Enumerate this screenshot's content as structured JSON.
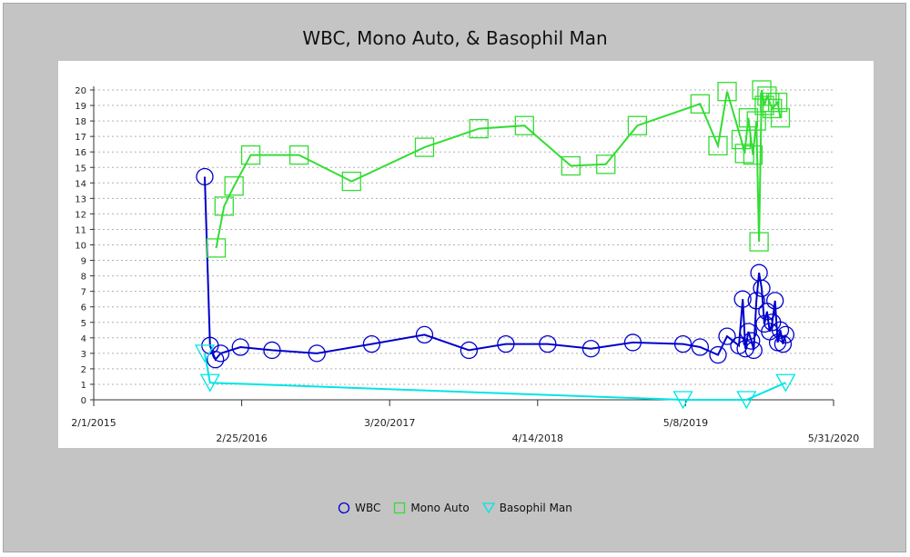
{
  "chart_data": {
    "type": "line",
    "title": "WBC, Mono Auto, & Basophil Man",
    "xlabel": "",
    "ylabel": "",
    "x_ticks": [
      "2/1/2015",
      "2/25/2016",
      "3/20/2017",
      "4/14/2018",
      "5/8/2019",
      "5/31/2020"
    ],
    "y_ticks": [
      "0",
      "1",
      "2",
      "3",
      "4",
      "5",
      "6",
      "7",
      "8",
      "9",
      "10",
      "11",
      "12",
      "13",
      "14",
      "15",
      "16",
      "17",
      "18",
      "19",
      "20"
    ],
    "xlim": [
      "2015-02-01",
      "2020-05-31"
    ],
    "ylim": [
      0,
      20
    ],
    "grid": "horizontal dashed",
    "legend_position": "bottom",
    "series": [
      {
        "name": "WBC",
        "color": "#0000cc",
        "marker": "circle",
        "points": [
          [
            "2015-11-20",
            14.4
          ],
          [
            "2015-12-04",
            3.5
          ],
          [
            "2015-12-18",
            2.6
          ],
          [
            "2016-01-01",
            3.0
          ],
          [
            "2016-02-22",
            3.4
          ],
          [
            "2016-05-15",
            3.2
          ],
          [
            "2016-09-10",
            3.0
          ],
          [
            "2017-02-01",
            3.6
          ],
          [
            "2017-06-20",
            4.2
          ],
          [
            "2017-10-15",
            3.2
          ],
          [
            "2018-01-20",
            3.6
          ],
          [
            "2018-05-10",
            3.6
          ],
          [
            "2018-09-01",
            3.3
          ],
          [
            "2018-12-20",
            3.7
          ],
          [
            "2019-05-01",
            3.6
          ],
          [
            "2019-06-15",
            3.4
          ],
          [
            "2019-08-01",
            2.9
          ],
          [
            "2019-08-25",
            4.1
          ],
          [
            "2019-09-25",
            3.5
          ],
          [
            "2019-10-05",
            6.5
          ],
          [
            "2019-10-12",
            3.3
          ],
          [
            "2019-10-20",
            4.4
          ],
          [
            "2019-10-28",
            3.8
          ],
          [
            "2019-11-03",
            3.2
          ],
          [
            "2019-11-10",
            6.4
          ],
          [
            "2019-11-17",
            8.2
          ],
          [
            "2019-11-24",
            7.2
          ],
          [
            "2019-12-01",
            4.9
          ],
          [
            "2019-12-08",
            5.7
          ],
          [
            "2019-12-15",
            4.4
          ],
          [
            "2019-12-22",
            5.0
          ],
          [
            "2019-12-29",
            6.4
          ],
          [
            "2020-01-05",
            3.7
          ],
          [
            "2020-01-12",
            4.5
          ],
          [
            "2020-01-19",
            3.6
          ],
          [
            "2020-01-26",
            4.2
          ]
        ]
      },
      {
        "name": "Mono Auto",
        "color": "#33dd33",
        "marker": "square",
        "points": [
          [
            "2015-12-20",
            9.8
          ],
          [
            "2016-01-10",
            12.5
          ],
          [
            "2016-02-05",
            13.8
          ],
          [
            "2016-03-20",
            15.8
          ],
          [
            "2016-07-25",
            15.8
          ],
          [
            "2016-12-10",
            14.1
          ],
          [
            "2017-06-20",
            16.3
          ],
          [
            "2017-11-10",
            17.5
          ],
          [
            "2018-03-10",
            17.7
          ],
          [
            "2018-07-10",
            15.1
          ],
          [
            "2018-10-10",
            15.2
          ],
          [
            "2019-01-01",
            17.7
          ],
          [
            "2019-06-15",
            19.1
          ],
          [
            "2019-08-01",
            16.4
          ],
          [
            "2019-08-25",
            19.9
          ],
          [
            "2019-10-01",
            16.8
          ],
          [
            "2019-10-10",
            15.9
          ],
          [
            "2019-10-20",
            18.2
          ],
          [
            "2019-11-01",
            15.8
          ],
          [
            "2019-11-10",
            18.0
          ],
          [
            "2019-11-17",
            10.2
          ],
          [
            "2019-11-24",
            20.0
          ],
          [
            "2019-12-01",
            19.0
          ],
          [
            "2019-12-08",
            19.6
          ],
          [
            "2019-12-15",
            19.2
          ],
          [
            "2019-12-22",
            18.8
          ],
          [
            "2020-01-05",
            19.2
          ],
          [
            "2020-01-12",
            18.2
          ]
        ]
      },
      {
        "name": "Basophil Man",
        "color": "#00e5e5",
        "marker": "triangle-down",
        "points": [
          [
            "2015-11-20",
            3.0
          ],
          [
            "2015-12-04",
            1.1
          ],
          [
            "2019-05-01",
            0.0
          ],
          [
            "2019-10-15",
            0.0
          ],
          [
            "2020-01-26",
            1.1
          ]
        ]
      }
    ]
  }
}
